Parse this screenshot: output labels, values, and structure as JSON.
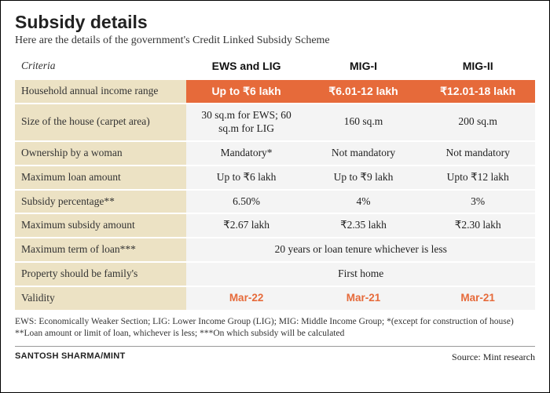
{
  "title": "Subsidy details",
  "subtitle": "Here are the details of the government's Credit Linked Subsidy Scheme",
  "criteria_label": "Criteria",
  "columns": [
    "EWS and LIG",
    "MIG-I",
    "MIG-II"
  ],
  "rows": {
    "income": {
      "label": "Household annual income range",
      "vals": [
        "Up to ₹6 lakh",
        "₹6.01-12 lakh",
        "₹12.01-18 lakh"
      ]
    },
    "size": {
      "label": "Size of the house (carpet area)",
      "vals": [
        "30 sq.m for EWS; 60 sq.m for LIG",
        "160 sq.m",
        "200 sq.m"
      ]
    },
    "ownership": {
      "label": "Ownership by a woman",
      "vals": [
        "Mandatory*",
        "Not mandatory",
        "Not mandatory"
      ]
    },
    "maxloan": {
      "label": "Maximum loan amount",
      "vals": [
        "Up to ₹6 lakh",
        "Up to ₹9 lakh",
        "Upto ₹12 lakh"
      ]
    },
    "subsidypct": {
      "label": "Subsidy percentage**",
      "vals": [
        "6.50%",
        "4%",
        "3%"
      ]
    },
    "maxsubsidy": {
      "label": "Maximum subsidy amount",
      "vals": [
        "₹2.67 lakh",
        "₹2.35 lakh",
        "₹2.30 lakh"
      ]
    },
    "term": {
      "label": "Maximum term of loan***",
      "span": "20 years or loan tenure whichever is less"
    },
    "property": {
      "label": "Property should be family's",
      "span": "First home"
    },
    "validity": {
      "label": "Validity",
      "vals": [
        "Mar-22",
        "Mar-21",
        "Mar-21"
      ]
    }
  },
  "footnote": "EWS: Economically Weaker Section; LIG: Lower Income Group (LIG); MIG: Middle Income Group; *(except for construction of house) **Loan amount or limit of loan, whichever is less; ***On which subsidy will be calculated",
  "byline": "SANTOSH SHARMA/MINT",
  "source": "Source: Mint research",
  "colors": {
    "accent_bg": "#e66a3a",
    "label_bg": "#ece2c4",
    "val_bg": "#f4f4f4",
    "validity_text": "#e66a3a"
  }
}
